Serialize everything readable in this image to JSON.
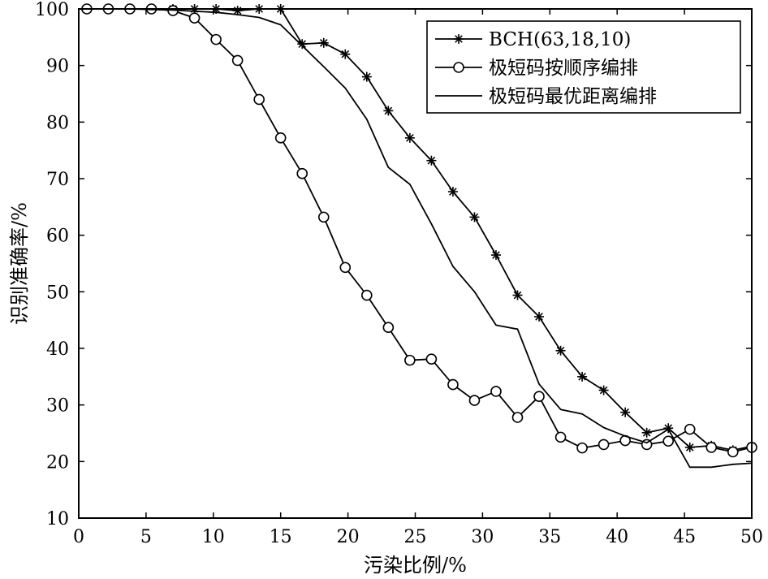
{
  "chart_data": {
    "type": "line",
    "title": "",
    "xlabel": "污染比例/%",
    "ylabel": "识别准确率/%",
    "xlim": [
      0,
      50
    ],
    "ylim": [
      10,
      100
    ],
    "x_ticks": [
      "0",
      "5",
      "10",
      "15",
      "20",
      "25",
      "30",
      "35",
      "40",
      "45",
      "50"
    ],
    "y_ticks": [
      "10",
      "20",
      "30",
      "40",
      "50",
      "60",
      "70",
      "80",
      "90",
      "100"
    ],
    "grid": false,
    "legend_position": "top-right",
    "series": [
      {
        "name": "BCH(63,18,10)",
        "marker": "asterisk",
        "x": [
          0.6,
          2.2,
          3.8,
          5.4,
          7,
          8.6,
          10.2,
          11.8,
          13.4,
          15,
          16.6,
          18.2,
          19.8,
          21.4,
          23,
          24.6,
          26.2,
          27.8,
          29.4,
          31,
          32.6,
          34.2,
          35.8,
          37.4,
          39,
          40.6,
          42.2,
          43.8,
          45.4,
          47,
          48.6,
          50
        ],
        "y": [
          100,
          100,
          100,
          100,
          100,
          100,
          100,
          99.7,
          100,
          100,
          93.8,
          94,
          92,
          88,
          82,
          77.2,
          73.2,
          67.7,
          63.2,
          56.5,
          49.4,
          45.6,
          39.6,
          35,
          32.6,
          28.7,
          25.1,
          25.9,
          22.5,
          22.8,
          22,
          22.7
        ]
      },
      {
        "name": "极短码按顺序编排",
        "marker": "circle",
        "x": [
          0.6,
          2.2,
          3.8,
          5.4,
          7,
          8.6,
          10.2,
          11.8,
          13.4,
          15,
          16.6,
          18.2,
          19.8,
          21.4,
          23,
          24.6,
          26.2,
          27.8,
          29.4,
          31,
          32.6,
          34.2,
          35.8,
          37.4,
          39,
          40.6,
          42.2,
          43.8,
          45.4,
          47,
          48.6,
          50
        ],
        "y": [
          100,
          100,
          100,
          100,
          99.7,
          98.4,
          94.6,
          90.9,
          84,
          77.2,
          70.9,
          63.2,
          54.3,
          49.4,
          43.7,
          37.9,
          38.1,
          33.6,
          30.8,
          32.4,
          27.8,
          31.5,
          24.3,
          22.4,
          23,
          23.7,
          23,
          23.6,
          25.7,
          22.5,
          21.7,
          22.5
        ]
      },
      {
        "name": "极短码最优距离编排",
        "marker": "none",
        "x": [
          0.6,
          2.2,
          3.8,
          5.4,
          7,
          8.6,
          10.2,
          11.8,
          13.4,
          15,
          16.6,
          18.2,
          19.8,
          21.4,
          23,
          24.6,
          26.2,
          27.8,
          29.4,
          31,
          32.6,
          34.2,
          35.8,
          37.4,
          39,
          40.6,
          42.2,
          43.8,
          45.4,
          47,
          48.6,
          50
        ],
        "y": [
          100,
          100,
          100,
          99.9,
          99.8,
          99.6,
          99.4,
          99,
          98.5,
          97.2,
          93.5,
          89.8,
          86,
          80.5,
          72,
          69,
          62,
          54.5,
          50,
          44.1,
          43.4,
          33.7,
          29.2,
          28.4,
          26,
          24.5,
          23.3,
          25.7,
          19,
          19,
          19.5,
          19.7
        ]
      }
    ]
  }
}
